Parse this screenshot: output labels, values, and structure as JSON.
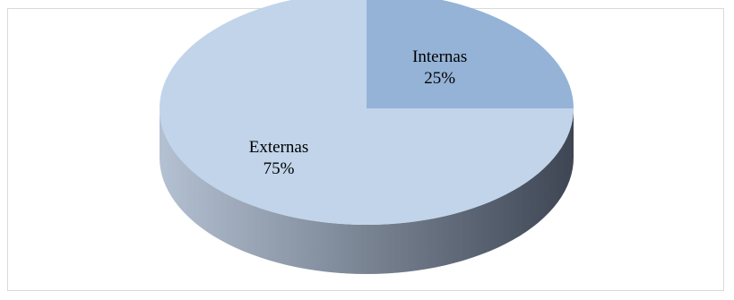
{
  "chart_data": {
    "type": "pie",
    "style": "3d",
    "title": "",
    "slices": [
      {
        "label": "Internas",
        "value": 25,
        "value_label": "25%",
        "color": "#95b3d7"
      },
      {
        "label": "Externas",
        "value": 75,
        "value_label": "75%",
        "color": "#c1d4ea"
      }
    ],
    "legend": "none",
    "data_labels": "inside",
    "colors": {
      "side_light": "#b4c1d2",
      "side_dark": "#3e4654",
      "frame_border": "#d9d9d9"
    }
  }
}
